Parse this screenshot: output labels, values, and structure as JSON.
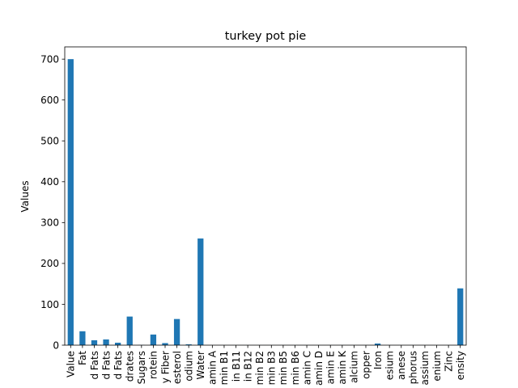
{
  "chart_data": {
    "type": "bar",
    "title": "turkey pot pie",
    "xlabel": "",
    "ylabel": "Values",
    "ylim": [
      0,
      730
    ],
    "yticks": [
      0,
      100,
      200,
      300,
      400,
      500,
      600,
      700
    ],
    "grid": false,
    "bar_color": "#1f77b4",
    "categories": [
      "Value",
      "Fat",
      "d Fats",
      "d Fats",
      "d Fats",
      "drates",
      "Sugars",
      "rotein",
      "y Fiber",
      "esterol",
      "odium",
      "Water",
      "amin A",
      "min B1",
      "in B11",
      "in B12",
      "min B2",
      "min B3",
      "min B5",
      "min B6",
      "amin C",
      "amin D",
      "amin E",
      "amin K",
      "alcium",
      "opper",
      "Iron",
      "esium",
      "anese",
      "phorus",
      "assium",
      "enium",
      "Zinc",
      "ensity"
    ],
    "values": [
      700,
      34,
      12,
      14,
      6,
      70,
      0.5,
      26,
      5,
      64,
      2,
      261,
      0.1,
      0.1,
      0.1,
      0.1,
      0.1,
      0.1,
      0.1,
      0.1,
      0.1,
      0.1,
      0.1,
      0.1,
      0.1,
      0.1,
      4,
      0.1,
      0.1,
      0.1,
      0.1,
      0.1,
      0.1,
      139
    ]
  }
}
